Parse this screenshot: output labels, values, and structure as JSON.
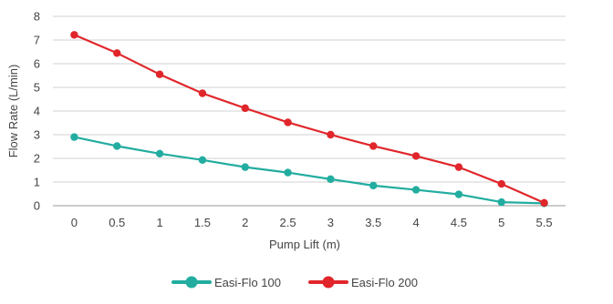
{
  "chart_data": {
    "type": "line",
    "title": "",
    "xlabel": "Pump Lift (m)",
    "ylabel": "Flow Rate (L/min)",
    "categories": [
      "0",
      "0.5",
      "1",
      "1.5",
      "2",
      "2.5",
      "3",
      "3.5",
      "4",
      "4.5",
      "5",
      "5.5"
    ],
    "ylim": [
      0,
      8
    ],
    "yticks": [
      "0",
      "1",
      "2",
      "3",
      "4",
      "5",
      "6",
      "7",
      "8"
    ],
    "grid": "horizontal",
    "legend_position": "bottom",
    "series": [
      {
        "name": "Easi-Flo 100",
        "color": "#22ADA0",
        "values": [
          2.9,
          2.52,
          2.2,
          1.93,
          1.63,
          1.4,
          1.12,
          0.85,
          0.67,
          0.48,
          0.15,
          0.1
        ]
      },
      {
        "name": "Easi-Flo 200",
        "color": "#E0262B",
        "values": [
          7.22,
          6.45,
          5.55,
          4.75,
          4.12,
          3.52,
          3.0,
          2.52,
          2.1,
          1.63,
          0.92,
          0.12
        ]
      }
    ]
  }
}
